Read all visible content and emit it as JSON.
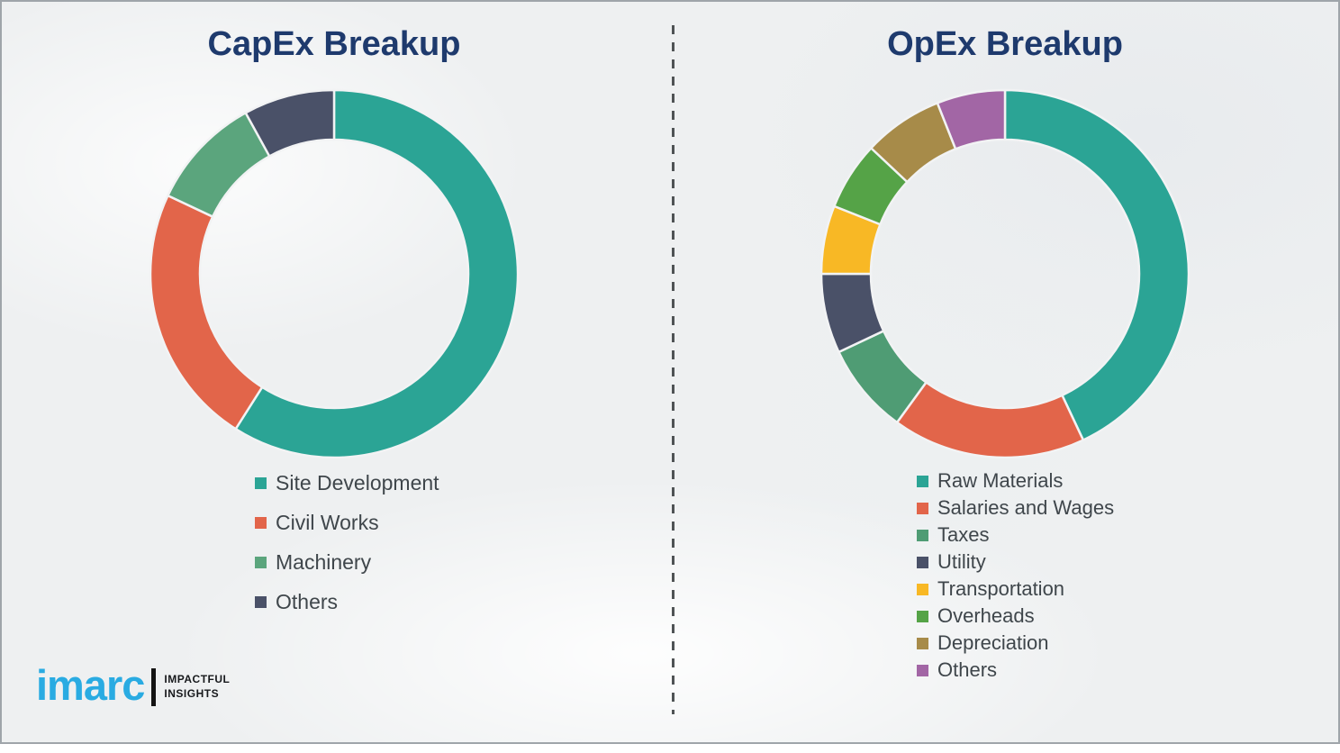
{
  "page": {
    "background_color": "#eef0f1",
    "border_color": "#9fa5aa",
    "divider_color": "#4f5355",
    "title_color": "#1e3a6d",
    "legend_text_color": "#3f464b"
  },
  "chart_data": [
    {
      "type": "donut",
      "title": "CapEx Breakup",
      "values_unit": "percent",
      "start_angle_deg": 0,
      "direction": "clockwise",
      "inner_radius_ratio": 0.73,
      "legend_position": "below-left",
      "segments": [
        {
          "label": "Site Development",
          "value": 59,
          "color": "#2ba495"
        },
        {
          "label": "Civil Works",
          "value": 23,
          "color": "#e2654a"
        },
        {
          "label": "Machinery",
          "value": 10,
          "color": "#5ba57d"
        },
        {
          "label": "Others",
          "value": 8,
          "color": "#4a5168"
        }
      ]
    },
    {
      "type": "donut",
      "title": "OpEx Breakup",
      "values_unit": "percent",
      "start_angle_deg": 0,
      "direction": "clockwise",
      "inner_radius_ratio": 0.73,
      "legend_position": "below-left",
      "segments": [
        {
          "label": "Raw Materials",
          "value": 43,
          "color": "#2ba495"
        },
        {
          "label": "Salaries and Wages",
          "value": 17,
          "color": "#e2654a"
        },
        {
          "label": "Taxes",
          "value": 8,
          "color": "#4f9c74"
        },
        {
          "label": "Utility",
          "value": 7,
          "color": "#4a5168"
        },
        {
          "label": "Transportation",
          "value": 6,
          "color": "#f8b825"
        },
        {
          "label": "Overheads",
          "value": 6,
          "color": "#55a347"
        },
        {
          "label": "Depreciation",
          "value": 7,
          "color": "#a78b49"
        },
        {
          "label": "Others",
          "value": 6,
          "color": "#a266a5"
        }
      ]
    }
  ],
  "branding": {
    "logo_text": "imarc",
    "tagline_lines": [
      "IMPACTFUL",
      "INSIGHTS"
    ],
    "logo_color": "#29abe2",
    "tagline_color": "#17191c"
  }
}
